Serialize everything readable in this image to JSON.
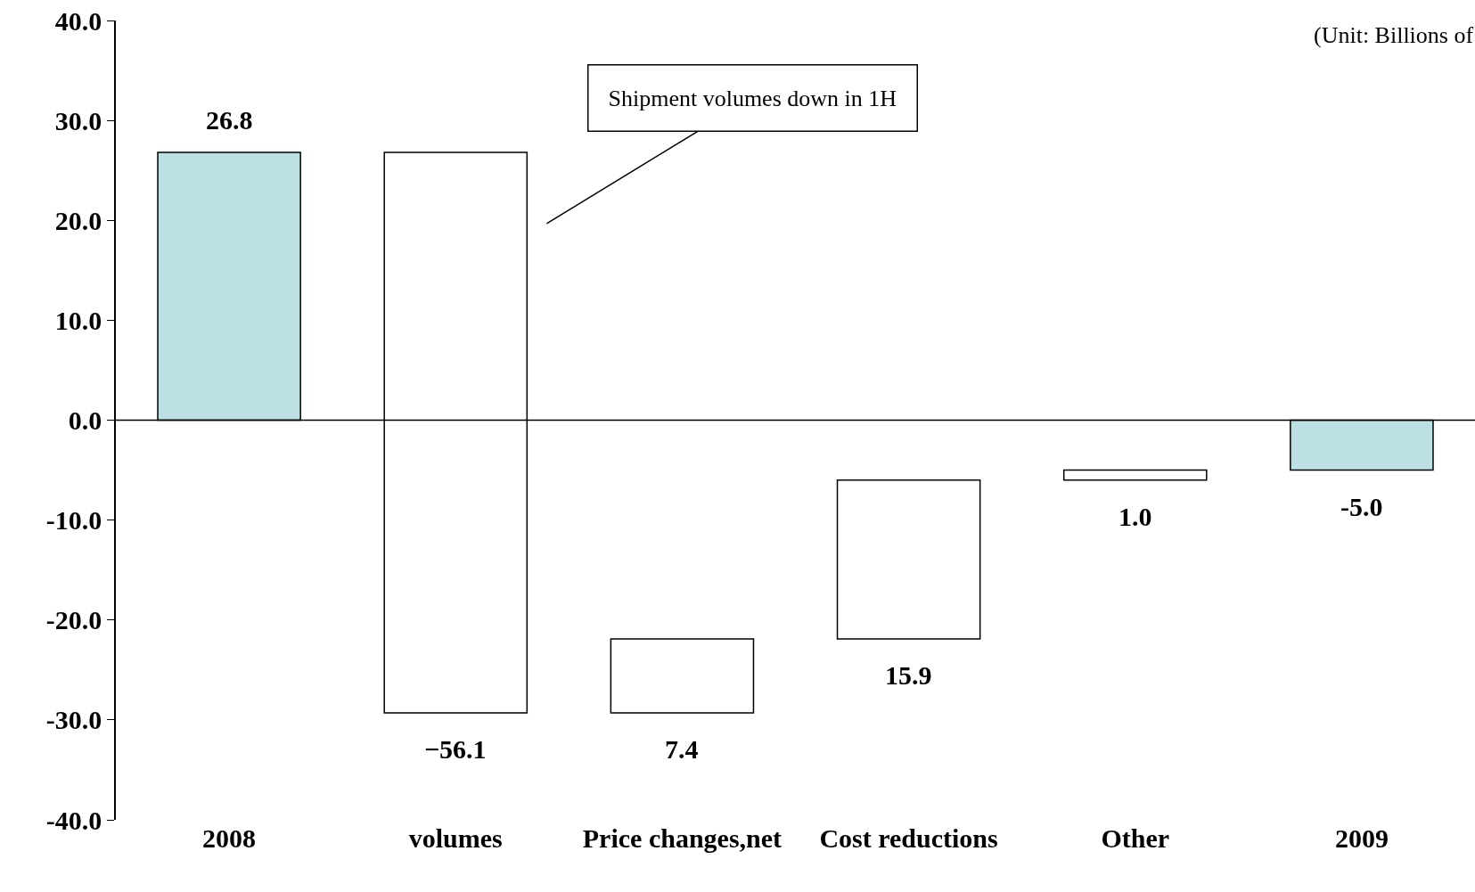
{
  "chart_data": {
    "type": "bar",
    "categories": [
      "2008",
      "volumes",
      "Price changes,net",
      "Cost reductions",
      "Other",
      "2009"
    ],
    "values": [
      26.8,
      -56.1,
      7.4,
      15.9,
      1.0,
      -5.0
    ],
    "base": [
      0,
      26.8,
      -29.3,
      -21.9,
      -6.0,
      0
    ],
    "colors": [
      "#bce0e3",
      "#ffffff",
      "#ffffff",
      "#ffffff",
      "#ffffff",
      "#bce0e3"
    ],
    "value_labels": [
      "26.8",
      "−56.1",
      "7.4",
      "15.9",
      "1.0",
      "-5.0"
    ],
    "ylim": [
      -40,
      40
    ],
    "yticks": [
      {
        "value": -40,
        "label": "-40.0"
      },
      {
        "value": -30,
        "label": "-30.0"
      },
      {
        "value": -20,
        "label": "-20.0"
      },
      {
        "value": -10,
        "label": "-10.0"
      },
      {
        "value": 0,
        "label": "0.0"
      },
      {
        "value": 10,
        "label": "10.0"
      },
      {
        "value": 20,
        "label": "20.0"
      },
      {
        "value": 30,
        "label": "30.0"
      },
      {
        "value": 40,
        "label": "40.0"
      }
    ],
    "annotations": [
      "(Unit: Billions of",
      "Shipment volumes down in 1H"
    ],
    "ref_lines": [
      {
        "axis": "y",
        "value": 0,
        "color": "#000000",
        "line_style": "solid"
      }
    ],
    "grid": false,
    "legend": false
  }
}
